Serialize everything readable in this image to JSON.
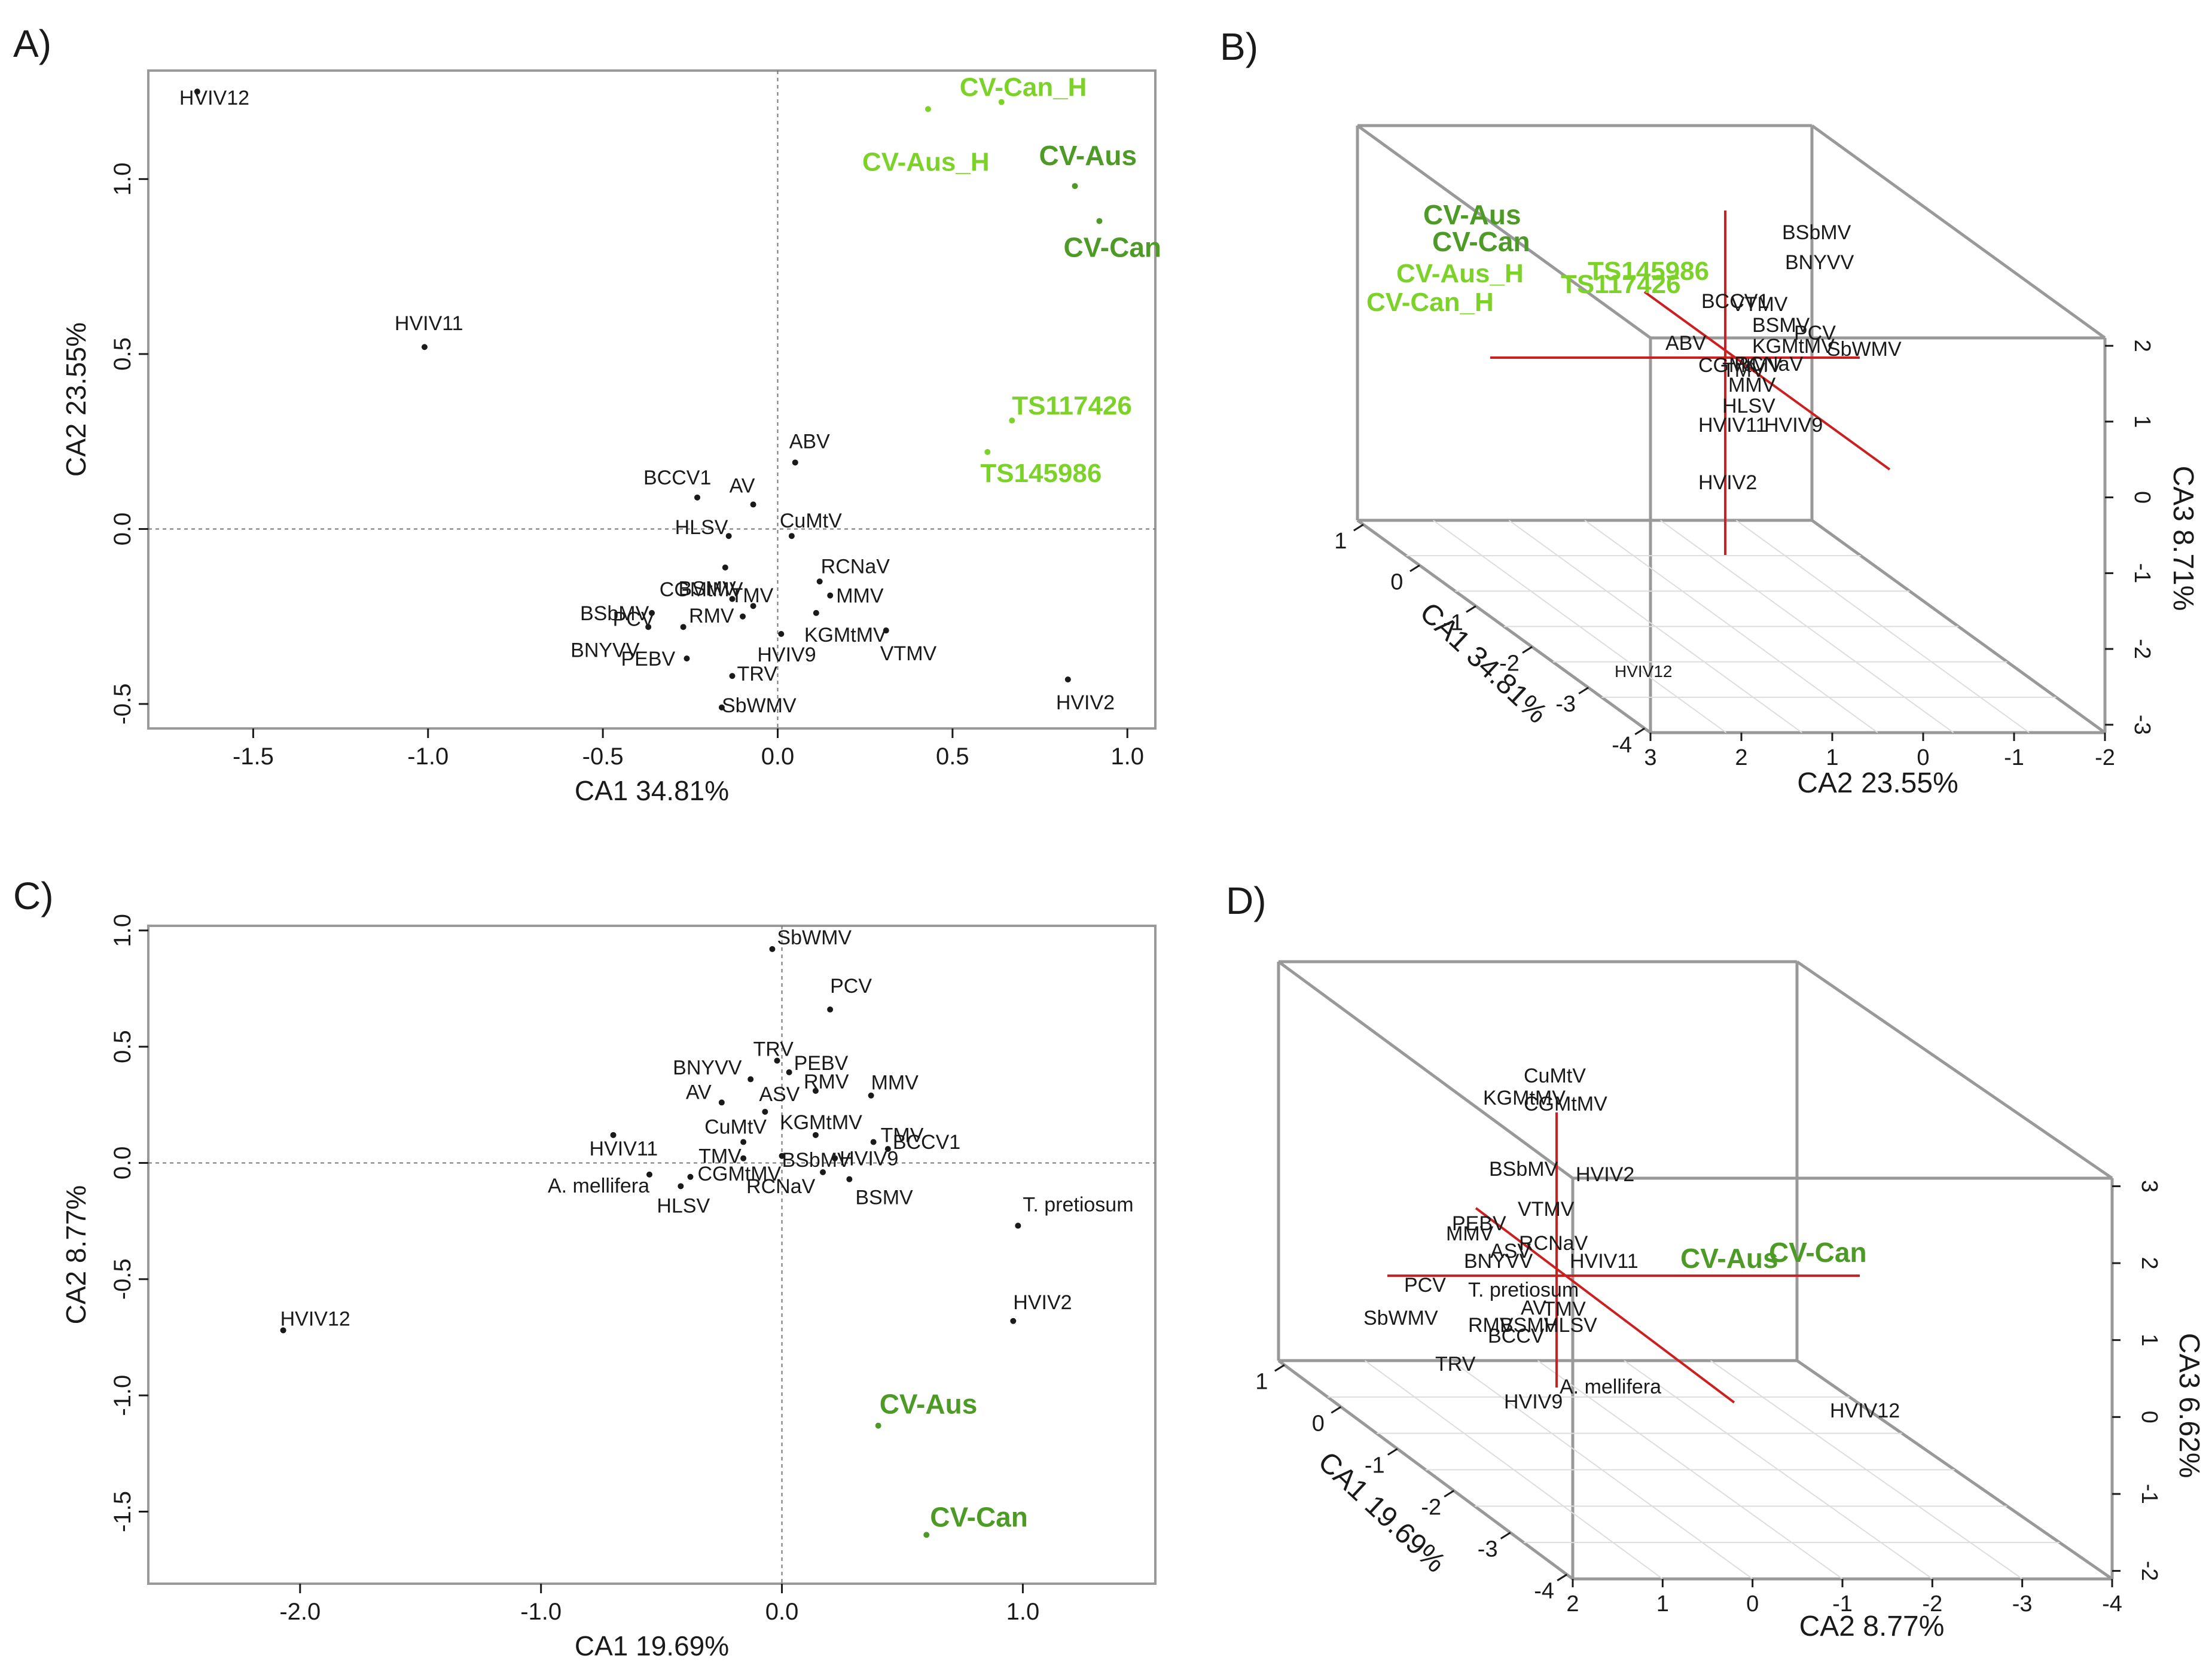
{
  "colors": {
    "ink": "#1a1a1a",
    "light_green": "#7dd22a",
    "dark_green": "#4e9a26",
    "red_axis": "#cc1f1f",
    "frame": "#999999"
  },
  "chart_data": [
    {
      "panel": "A)",
      "type": "scatter",
      "xlabel": "CA1 34.81%",
      "ylabel": "CA2 23.55%",
      "xlim": [
        -1.8,
        1.08
      ],
      "ylim": [
        -0.57,
        1.31
      ],
      "xticks": [
        -1.5,
        -1.0,
        -0.5,
        0.0,
        0.5,
        1.0
      ],
      "xtick_labels": [
        "-1.5",
        "-1.0",
        "-0.5",
        "0.0",
        "0.5",
        "1.0"
      ],
      "yticks": [
        -0.5,
        0.0,
        0.5,
        1.0
      ],
      "ytick_labels": [
        "-0.5",
        "0.0",
        "0.5",
        "1.0"
      ],
      "points": [
        {
          "label": "HVIV12",
          "x": -1.66,
          "y": 1.25,
          "group": "virus"
        },
        {
          "label": "HVIV11",
          "x": -1.01,
          "y": 0.52,
          "group": "virus"
        },
        {
          "label": "ABV",
          "x": 0.05,
          "y": 0.19,
          "group": "virus"
        },
        {
          "label": "BCCV1",
          "x": -0.23,
          "y": 0.09,
          "group": "virus"
        },
        {
          "label": "AV",
          "x": -0.07,
          "y": 0.07,
          "group": "virus"
        },
        {
          "label": "HLSV",
          "x": -0.14,
          "y": -0.02,
          "group": "virus"
        },
        {
          "label": "CuMtV",
          "x": 0.04,
          "y": -0.02,
          "group": "virus"
        },
        {
          "label": "CGMtMV",
          "x": -0.15,
          "y": -0.11,
          "group": "virus"
        },
        {
          "label": "RCNaV",
          "x": 0.12,
          "y": -0.15,
          "group": "virus"
        },
        {
          "label": "MMV",
          "x": 0.15,
          "y": -0.19,
          "group": "virus"
        },
        {
          "label": "BSMV",
          "x": -0.13,
          "y": -0.2,
          "group": "virus"
        },
        {
          "label": "TMV",
          "x": -0.07,
          "y": -0.22,
          "group": "virus"
        },
        {
          "label": "KGMtMV",
          "x": 0.11,
          "y": -0.24,
          "group": "virus"
        },
        {
          "label": "BSbMV",
          "x": -0.36,
          "y": -0.24,
          "group": "virus"
        },
        {
          "label": "PCV",
          "x": -0.27,
          "y": -0.28,
          "group": "virus"
        },
        {
          "label": "RMV",
          "x": -0.1,
          "y": -0.25,
          "group": "virus"
        },
        {
          "label": "BNYVV",
          "x": -0.37,
          "y": -0.28,
          "group": "virus"
        },
        {
          "label": "HVIV9",
          "x": 0.01,
          "y": -0.3,
          "group": "virus"
        },
        {
          "label": "VTMV",
          "x": 0.31,
          "y": -0.29,
          "group": "virus"
        },
        {
          "label": "PEBV",
          "x": -0.26,
          "y": -0.37,
          "group": "virus"
        },
        {
          "label": "TRV",
          "x": -0.13,
          "y": -0.42,
          "group": "virus"
        },
        {
          "label": "SbWMV",
          "x": -0.16,
          "y": -0.51,
          "group": "virus"
        },
        {
          "label": "HVIV2",
          "x": 0.83,
          "y": -0.43,
          "group": "virus"
        },
        {
          "label": "CV-Can_H",
          "x": 0.64,
          "y": 1.22,
          "group": "host_h"
        },
        {
          "label": "CV-Aus_H",
          "x": 0.43,
          "y": 1.2,
          "group": "host_h"
        },
        {
          "label": "CV-Aus",
          "x": 0.85,
          "y": 0.98,
          "group": "host"
        },
        {
          "label": "CV-Can",
          "x": 0.92,
          "y": 0.88,
          "group": "host"
        },
        {
          "label": "TS117426",
          "x": 0.67,
          "y": 0.31,
          "group": "host_h"
        },
        {
          "label": "TS145986",
          "x": 0.6,
          "y": 0.22,
          "group": "host_h"
        }
      ]
    },
    {
      "panel": "B)",
      "type": "scatter3d",
      "xlabel": "CA1 34.81%",
      "ylabel": "CA2 23.55%",
      "zlabel": "CA3 8.71%",
      "ca1_tick_labels": [
        "1",
        "0",
        "-1",
        "-2",
        "-3",
        "-4"
      ],
      "ca2_tick_labels": [
        "3",
        "2",
        "1",
        "0",
        "-1",
        "-2"
      ],
      "ca3_tick_labels": [
        "2",
        "1",
        "0",
        "-1",
        "-2",
        "-3"
      ],
      "point_labels": [
        {
          "label": "CV-Aus",
          "group": "host"
        },
        {
          "label": "CV-Can",
          "group": "host"
        },
        {
          "label": "CV-Aus_H",
          "group": "host_h"
        },
        {
          "label": "CV-Can_H",
          "group": "host_h"
        },
        {
          "label": "TS145986",
          "group": "host_h"
        },
        {
          "label": "TS117426",
          "group": "host_h"
        },
        {
          "label": "BSbMV",
          "group": "virus"
        },
        {
          "label": "BNYVV",
          "group": "virus"
        },
        {
          "label": "BCCV1",
          "group": "virus"
        },
        {
          "label": "VTMV",
          "group": "virus"
        },
        {
          "label": "BSMV",
          "group": "virus"
        },
        {
          "label": "PCV",
          "group": "virus"
        },
        {
          "label": "ABV",
          "group": "virus"
        },
        {
          "label": "KGMtMV",
          "group": "virus"
        },
        {
          "label": "SbWMV",
          "group": "virus"
        },
        {
          "label": "CGMtMV",
          "group": "virus"
        },
        {
          "label": "RCNaV",
          "group": "virus"
        },
        {
          "label": "TMV",
          "group": "virus"
        },
        {
          "label": "MMV",
          "group": "virus"
        },
        {
          "label": "HLSV",
          "group": "virus"
        },
        {
          "label": "HVIV11",
          "group": "virus"
        },
        {
          "label": "HVIV9",
          "group": "virus"
        },
        {
          "label": "HVIV2",
          "group": "virus"
        },
        {
          "label": "HVIV12",
          "group": "virus"
        }
      ]
    },
    {
      "panel": "C)",
      "type": "scatter",
      "xlabel": "CA1 19.69%",
      "ylabel": "CA2 8.77%",
      "xlim": [
        -2.63,
        1.55
      ],
      "ylim": [
        -1.81,
        1.02
      ],
      "xticks": [
        -2.0,
        -1.0,
        0.0,
        1.0
      ],
      "xtick_labels": [
        "-2.0",
        "-1.0",
        "0.0",
        "1.0"
      ],
      "yticks": [
        -1.5,
        -1.0,
        -0.5,
        0.0,
        0.5,
        1.0
      ],
      "ytick_labels": [
        "-1.5",
        "-1.0",
        "-0.5",
        "0.0",
        "0.5",
        "1.0"
      ],
      "points": [
        {
          "label": "SbWMV",
          "x": -0.04,
          "y": 0.92,
          "group": "virus"
        },
        {
          "label": "PCV",
          "x": 0.2,
          "y": 0.66,
          "group": "virus"
        },
        {
          "label": "TRV",
          "x": -0.02,
          "y": 0.44,
          "group": "virus"
        },
        {
          "label": "BNYVV",
          "x": -0.13,
          "y": 0.36,
          "group": "virus"
        },
        {
          "label": "PEBV",
          "x": 0.03,
          "y": 0.39,
          "group": "virus"
        },
        {
          "label": "RMV",
          "x": 0.14,
          "y": 0.31,
          "group": "virus"
        },
        {
          "label": "MMV",
          "x": 0.37,
          "y": 0.29,
          "group": "virus"
        },
        {
          "label": "AV",
          "x": -0.25,
          "y": 0.26,
          "group": "virus"
        },
        {
          "label": "ASV",
          "x": -0.07,
          "y": 0.22,
          "group": "virus"
        },
        {
          "label": "KGMtMV",
          "x": 0.14,
          "y": 0.12,
          "group": "virus"
        },
        {
          "label": "TMV",
          "x": 0.38,
          "y": 0.09,
          "group": "virus"
        },
        {
          "label": "CuMtV",
          "x": -0.16,
          "y": 0.09,
          "group": "virus"
        },
        {
          "label": "BCCV1",
          "x": 0.44,
          "y": 0.06,
          "group": "virus"
        },
        {
          "label": "HVIV11",
          "x": -0.7,
          "y": 0.12,
          "group": "virus"
        },
        {
          "label": "TMV",
          "x": -0.16,
          "y": 0.02,
          "group": "virus"
        },
        {
          "label": "BSbMV",
          "x": 0.0,
          "y": 0.03,
          "group": "virus"
        },
        {
          "label": "HVIV9",
          "x": 0.22,
          "y": 0.02,
          "group": "virus"
        },
        {
          "label": "A. mellifera",
          "x": -0.55,
          "y": -0.05,
          "group": "virus"
        },
        {
          "label": "CGMtMV",
          "x": -0.38,
          "y": -0.06,
          "group": "virus"
        },
        {
          "label": "RCNaV",
          "x": 0.17,
          "y": -0.04,
          "group": "virus"
        },
        {
          "label": "BSMV",
          "x": 0.28,
          "y": -0.07,
          "group": "virus"
        },
        {
          "label": "HLSV",
          "x": -0.42,
          "y": -0.1,
          "group": "virus"
        },
        {
          "label": "T. pretiosum",
          "x": 0.98,
          "y": -0.27,
          "group": "virus"
        },
        {
          "label": "HVIV12",
          "x": -2.07,
          "y": -0.72,
          "group": "virus"
        },
        {
          "label": "HVIV2",
          "x": 0.96,
          "y": -0.68,
          "group": "virus"
        },
        {
          "label": "CV-Aus",
          "x": 0.4,
          "y": -1.13,
          "group": "host"
        },
        {
          "label": "CV-Can",
          "x": 0.6,
          "y": -1.6,
          "group": "host"
        }
      ]
    },
    {
      "panel": "D)",
      "type": "scatter3d",
      "xlabel": "CA1 19.69%",
      "ylabel": "CA2 8.77%",
      "zlabel": "CA3 6.62%",
      "ca1_tick_labels": [
        "1",
        "0",
        "-1",
        "-2",
        "-3",
        "-4"
      ],
      "ca2_tick_labels": [
        "2",
        "1",
        "0",
        "-1",
        "-2",
        "-3",
        "-4"
      ],
      "ca3_tick_labels": [
        "3",
        "2",
        "1",
        "0",
        "-1",
        "-2"
      ],
      "point_labels": [
        {
          "label": "CuMtV",
          "group": "virus"
        },
        {
          "label": "KGMtMV",
          "group": "virus"
        },
        {
          "label": "CGMtMV",
          "group": "virus"
        },
        {
          "label": "BSbMV",
          "group": "virus"
        },
        {
          "label": "HVIV2",
          "group": "virus"
        },
        {
          "label": "VTMV",
          "group": "virus"
        },
        {
          "label": "PEBV",
          "group": "virus"
        },
        {
          "label": "MMV",
          "group": "virus"
        },
        {
          "label": "RCNaV",
          "group": "virus"
        },
        {
          "label": "ASV",
          "group": "virus"
        },
        {
          "label": "BNYVV",
          "group": "virus"
        },
        {
          "label": "HVIV11",
          "group": "virus"
        },
        {
          "label": "CV-Aus",
          "group": "host"
        },
        {
          "label": "CV-Can",
          "group": "host"
        },
        {
          "label": "PCV",
          "group": "virus"
        },
        {
          "label": "T. pretiosum",
          "group": "virus"
        },
        {
          "label": "SbWMV",
          "group": "virus"
        },
        {
          "label": "AV",
          "group": "virus"
        },
        {
          "label": "TMV",
          "group": "virus"
        },
        {
          "label": "RMV",
          "group": "virus"
        },
        {
          "label": "BSMV",
          "group": "virus"
        },
        {
          "label": "HLSV",
          "group": "virus"
        },
        {
          "label": "BCCV",
          "group": "virus"
        },
        {
          "label": "TRV",
          "group": "virus"
        },
        {
          "label": "A. mellifera",
          "group": "virus"
        },
        {
          "label": "HVIV9",
          "group": "virus"
        },
        {
          "label": "HVIV12",
          "group": "virus"
        }
      ]
    }
  ]
}
